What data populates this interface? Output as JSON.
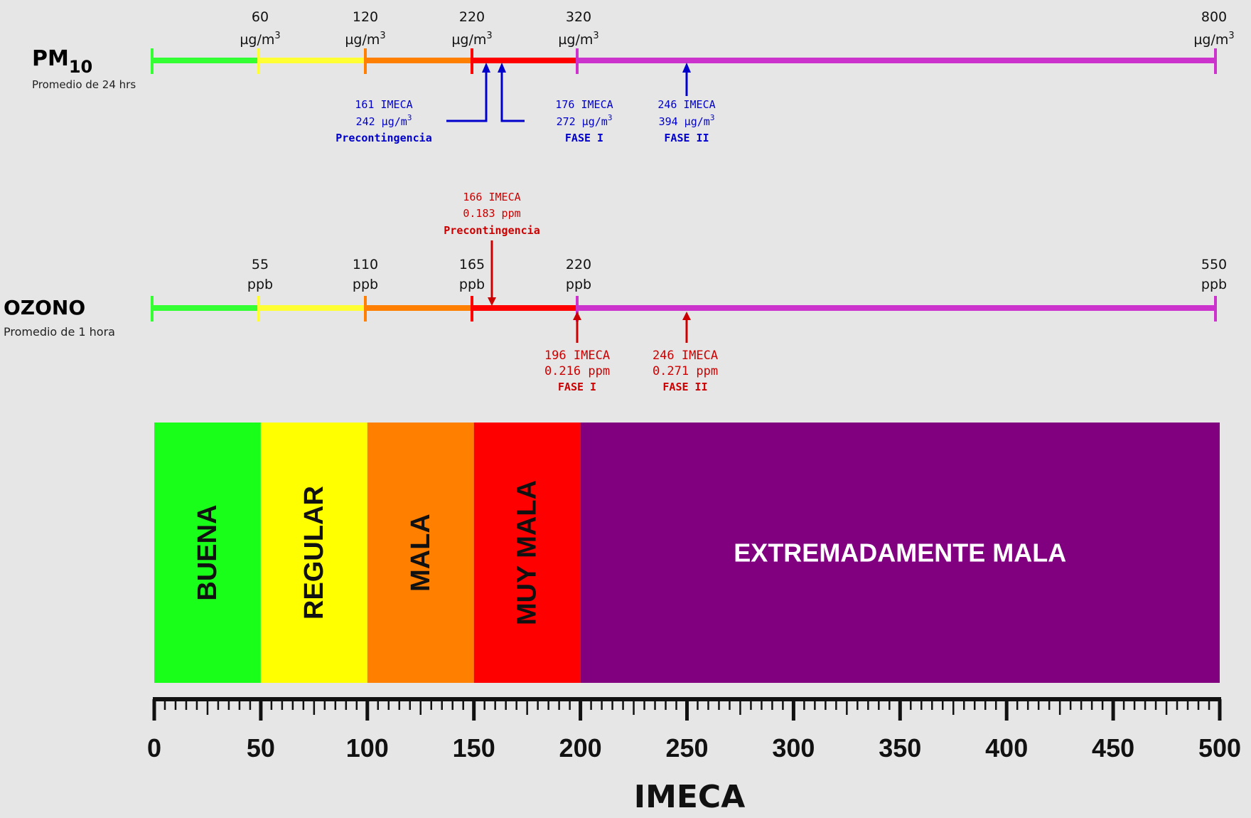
{
  "pm10": {
    "name": "PM",
    "sub": "10",
    "note": "Promedio de 24 hrs",
    "ticks": [
      {
        "val": "60",
        "unit": "µg/m",
        "sup": "3"
      },
      {
        "val": "120",
        "unit": "µg/m",
        "sup": "3"
      },
      {
        "val": "220",
        "unit": "µg/m",
        "sup": "3"
      },
      {
        "val": "320",
        "unit": "µg/m",
        "sup": "3"
      },
      {
        "val": "800",
        "unit": "µg/m",
        "sup": "3"
      }
    ],
    "annotations": [
      {
        "l1": "161 IMECA",
        "l2": "242 µg/m",
        "sup": "3",
        "l3": "Precontingencia"
      },
      {
        "l1": "176 IMECA",
        "l2": "272 µg/m",
        "sup": "3",
        "l3": "FASE I"
      },
      {
        "l1": "246 IMECA",
        "l2": "394 µg/m",
        "sup": "3",
        "l3": "FASE II"
      }
    ]
  },
  "ozono": {
    "name": "OZONO",
    "note": "Promedio de 1 hora",
    "ticks": [
      {
        "val": "55",
        "unit": "ppb"
      },
      {
        "val": "110",
        "unit": "ppb"
      },
      {
        "val": "165",
        "unit": "ppb"
      },
      {
        "val": "220",
        "unit": "ppb"
      },
      {
        "val": "550",
        "unit": "ppb"
      }
    ],
    "annotations": [
      {
        "l1": "166 IMECA",
        "l2": "0.183 ppm",
        "l3": "Precontingencia"
      },
      {
        "l1": "196 IMECA",
        "l2": "0.216 ppm",
        "l3": "FASE I"
      },
      {
        "l1": "246 IMECA",
        "l2": "0.271 ppm",
        "l3": "FASE II"
      }
    ]
  },
  "categories": [
    {
      "label": "BUENA",
      "from": 0,
      "to": 50,
      "color": "#19ff19"
    },
    {
      "label": "REGULAR",
      "from": 50,
      "to": 100,
      "color": "#ffff00"
    },
    {
      "label": "MALA",
      "from": 100,
      "to": 150,
      "color": "#ff8000"
    },
    {
      "label": "MUY MALA",
      "from": 150,
      "to": 200,
      "color": "#ff0000"
    },
    {
      "label": "EXTREMADAMENTE MALA",
      "from": 200,
      "to": 500,
      "color": "#800080"
    }
  ],
  "scale": {
    "title": "IMECA",
    "min": 0,
    "max": 500,
    "labels": [
      "0",
      "50",
      "100",
      "150",
      "200",
      "250",
      "300",
      "350",
      "400",
      "450",
      "500"
    ]
  },
  "colors": {
    "pm10_annotation": "#0000cc",
    "ozono_annotation": "#cc0000"
  }
}
